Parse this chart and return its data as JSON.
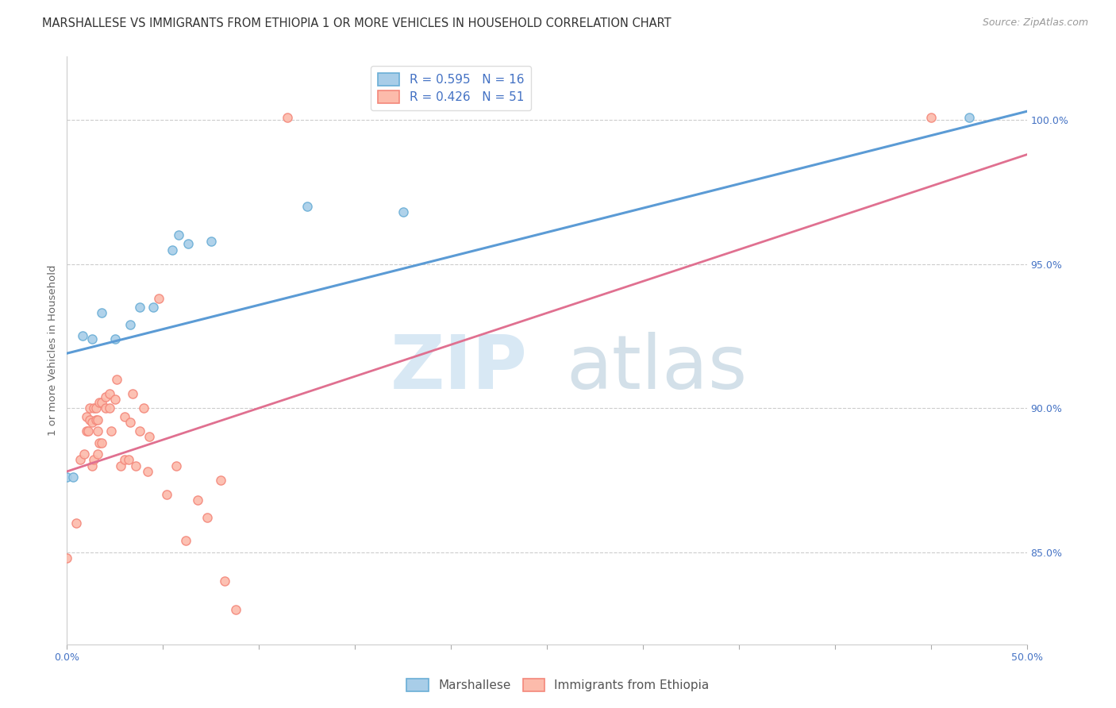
{
  "title": "MARSHALLESE VS IMMIGRANTS FROM ETHIOPIA 1 OR MORE VEHICLES IN HOUSEHOLD CORRELATION CHART",
  "source": "Source: ZipAtlas.com",
  "ylabel": "1 or more Vehicles in Household",
  "xlim": [
    0.0,
    0.5
  ],
  "ylim": [
    0.818,
    1.022
  ],
  "ytick_labels": [
    "85.0%",
    "90.0%",
    "95.0%",
    "100.0%"
  ],
  "ytick_values": [
    0.85,
    0.9,
    0.95,
    1.0
  ],
  "xtick_values": [
    0.0,
    0.05,
    0.1,
    0.15,
    0.2,
    0.25,
    0.3,
    0.35,
    0.4,
    0.45,
    0.5
  ],
  "xtick_labels": [
    "0.0%",
    "",
    "",
    "",
    "",
    "",
    "",
    "",
    "",
    "",
    "50.0%"
  ],
  "marshallese_scatter_color": "#a8cde8",
  "marshallese_edge_color": "#6aaed6",
  "ethiopia_scatter_color": "#fcbbab",
  "ethiopia_edge_color": "#f4877a",
  "blue_line_color": "#5b9bd5",
  "pink_line_color": "#e07090",
  "R_blue": 0.595,
  "N_blue": 16,
  "R_pink": 0.426,
  "N_pink": 51,
  "legend_label_blue": "Marshallese",
  "legend_label_pink": "Immigrants from Ethiopia",
  "legend_text_color": "#4472c4",
  "blue_line_x": [
    0.0,
    0.5
  ],
  "blue_line_y": [
    0.919,
    1.003
  ],
  "pink_line_x": [
    0.0,
    0.5
  ],
  "pink_line_y": [
    0.878,
    0.988
  ],
  "marshallese_x": [
    0.0,
    0.003,
    0.008,
    0.013,
    0.018,
    0.025,
    0.033,
    0.038,
    0.045,
    0.055,
    0.058,
    0.063,
    0.075,
    0.125,
    0.175,
    0.47
  ],
  "marshallese_y": [
    0.876,
    0.876,
    0.925,
    0.924,
    0.933,
    0.924,
    0.929,
    0.935,
    0.935,
    0.955,
    0.96,
    0.957,
    0.958,
    0.97,
    0.968,
    1.001
  ],
  "ethiopia_x": [
    0.0,
    0.005,
    0.007,
    0.009,
    0.01,
    0.01,
    0.011,
    0.012,
    0.012,
    0.013,
    0.013,
    0.014,
    0.014,
    0.015,
    0.015,
    0.016,
    0.016,
    0.016,
    0.017,
    0.017,
    0.018,
    0.018,
    0.02,
    0.02,
    0.022,
    0.022,
    0.023,
    0.025,
    0.026,
    0.028,
    0.03,
    0.03,
    0.032,
    0.033,
    0.034,
    0.036,
    0.038,
    0.04,
    0.042,
    0.043,
    0.048,
    0.052,
    0.057,
    0.062,
    0.068,
    0.073,
    0.08,
    0.082,
    0.088,
    0.115,
    0.45
  ],
  "ethiopia_y": [
    0.848,
    0.86,
    0.882,
    0.884,
    0.892,
    0.897,
    0.892,
    0.896,
    0.9,
    0.88,
    0.895,
    0.9,
    0.882,
    0.896,
    0.9,
    0.884,
    0.892,
    0.896,
    0.888,
    0.902,
    0.888,
    0.902,
    0.9,
    0.904,
    0.9,
    0.905,
    0.892,
    0.903,
    0.91,
    0.88,
    0.882,
    0.897,
    0.882,
    0.895,
    0.905,
    0.88,
    0.892,
    0.9,
    0.878,
    0.89,
    0.938,
    0.87,
    0.88,
    0.854,
    0.868,
    0.862,
    0.875,
    0.84,
    0.83,
    1.001,
    1.001
  ],
  "marker_size": 65,
  "grid_color": "#cccccc",
  "bg_color": "#ffffff",
  "title_fontsize": 10.5,
  "axis_label_fontsize": 9.5,
  "tick_fontsize": 9,
  "legend_fontsize": 11,
  "source_fontsize": 9,
  "watermark_zip": "ZIP",
  "watermark_atlas": "atlas",
  "watermark_color_zip": "#c8dff0",
  "watermark_color_atlas": "#b0c8d8"
}
